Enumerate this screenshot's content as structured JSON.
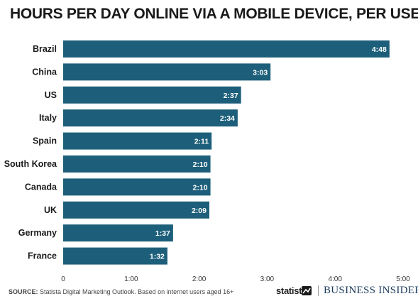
{
  "title": "HOURS PER DAY ONLINE VIA A MOBILE DEVICE, PER USER",
  "footer": {
    "source_prefix": "SOURCE:",
    "source_text": " Statista Digital Marketing Outlook. Based on internet users aged 16+",
    "brand_statista": "statista",
    "brand_bi": "BUSINESS INSIDER"
  },
  "colors": {
    "bar": "#1d5f7a",
    "text": "#1a1a1a",
    "value_text": "#ffffff"
  },
  "chart_data": {
    "type": "bar",
    "orientation": "horizontal",
    "title": "HOURS PER DAY ONLINE VIA A MOBILE DEVICE, PER USER",
    "categories": [
      "Brazil",
      "China",
      "US",
      "Italy",
      "Spain",
      "South Korea",
      "Canada",
      "UK",
      "Germany",
      "France"
    ],
    "values": [
      288,
      183,
      157,
      154,
      131,
      130,
      130,
      129,
      97,
      92
    ],
    "value_unit": "minutes",
    "value_labels": [
      "4:48",
      "3:03",
      "2:37",
      "2:34",
      "2:11",
      "2:10",
      "2:10",
      "2:09",
      "1:37",
      "1:32"
    ],
    "xlim": [
      0,
      300
    ],
    "x_ticks": [
      0,
      60,
      120,
      180,
      240,
      300
    ],
    "x_tick_labels": [
      "0",
      "1:00",
      "2:00",
      "3:00",
      "4:00",
      "5:00"
    ],
    "xlabel": "",
    "ylabel": "",
    "grid": false,
    "legend": "none"
  }
}
